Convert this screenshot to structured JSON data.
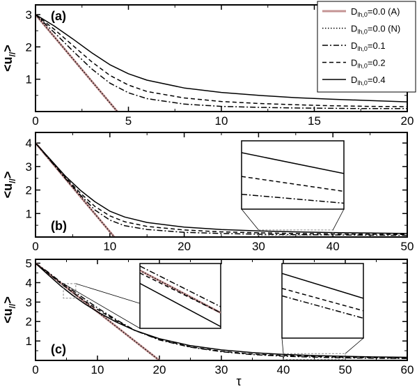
{
  "colors": {
    "analytic": "#c49494",
    "curves": "#000000",
    "inset_box": "#888888"
  },
  "legend": [
    {
      "base": "D",
      "sub": "lh,0",
      "suffix": "=0.0 (A)",
      "style": "analytic"
    },
    {
      "base": "D",
      "sub": "lh,0",
      "suffix": "=0.0 (N)",
      "style": "dotted"
    },
    {
      "base": "D",
      "sub": "lh,0",
      "suffix": "=0.1",
      "style": "dashdot"
    },
    {
      "base": "D",
      "sub": "lh,0",
      "suffix": "=0.2",
      "style": "dashed"
    },
    {
      "base": "D",
      "sub": "lh,0",
      "suffix": "=0.4",
      "style": "solid"
    }
  ],
  "xlabel": "τ",
  "chart_data": [
    {
      "type": "line",
      "panel_label": "(a)",
      "ylabel": {
        "base": "<u",
        "sub": "//",
        "suffix": ">"
      },
      "xlim": [
        0,
        20
      ],
      "ylim": [
        0,
        3.3
      ],
      "xticks": [
        "0",
        "5",
        "10",
        "15",
        "20"
      ],
      "yticks": [
        "1",
        "2",
        "3"
      ],
      "x": [
        0,
        1,
        2,
        3,
        4,
        5,
        6,
        8,
        10,
        12,
        14,
        16,
        18,
        20
      ],
      "series": [
        {
          "name": "Dlh,0=0.0 (A)",
          "style": "analytic",
          "points": [
            [
              0,
              3.0
            ],
            [
              4.4,
              0.0
            ]
          ]
        },
        {
          "name": "Dlh,0=0.0 (N)",
          "style": "dotted",
          "points": [
            [
              0,
              3.0
            ],
            [
              4.4,
              0.0
            ]
          ]
        },
        {
          "name": "Dlh,0=0.1",
          "style": "dashdot",
          "values": [
            3.0,
            2.45,
            1.88,
            1.33,
            0.88,
            0.58,
            0.4,
            0.23,
            0.16,
            0.13,
            0.11,
            0.1,
            0.09,
            0.09
          ]
        },
        {
          "name": "Dlh,0=0.2",
          "style": "dashed",
          "values": [
            3.0,
            2.55,
            2.05,
            1.55,
            1.12,
            0.82,
            0.62,
            0.42,
            0.31,
            0.25,
            0.21,
            0.18,
            0.16,
            0.15
          ]
        },
        {
          "name": "Dlh,0=0.4",
          "style": "solid",
          "values": [
            3.0,
            2.65,
            2.25,
            1.83,
            1.45,
            1.17,
            0.97,
            0.73,
            0.59,
            0.5,
            0.43,
            0.38,
            0.34,
            0.3
          ]
        }
      ]
    },
    {
      "type": "line",
      "panel_label": "(b)",
      "ylabel": {
        "base": "<u",
        "sub": "//",
        "suffix": ">"
      },
      "xlim": [
        0,
        50
      ],
      "ylim": [
        0,
        4.45
      ],
      "xticks": [
        "0",
        "10",
        "20",
        "30",
        "40",
        "50"
      ],
      "yticks": [
        "1",
        "2",
        "3",
        "4"
      ],
      "x": [
        0,
        2,
        4,
        6,
        8,
        10,
        12,
        15,
        20,
        25,
        30,
        35,
        40,
        45,
        50
      ],
      "series": [
        {
          "name": "Dlh,0=0.0 (A)",
          "style": "analytic",
          "points": [
            [
              0,
              4.0
            ],
            [
              10.6,
              0.0
            ]
          ]
        },
        {
          "name": "Dlh,0=0.0 (N)",
          "style": "dotted",
          "points": [
            [
              0,
              4.0
            ],
            [
              10.6,
              0.0
            ]
          ]
        },
        {
          "name": "Dlh,0=0.1",
          "style": "dashdot",
          "values": [
            4.0,
            3.25,
            2.5,
            1.8,
            1.15,
            0.72,
            0.48,
            0.32,
            0.2,
            0.15,
            0.12,
            0.1,
            0.09,
            0.08,
            0.07
          ]
        },
        {
          "name": "Dlh,0=0.2",
          "style": "dashed",
          "values": [
            4.0,
            3.28,
            2.55,
            1.88,
            1.3,
            0.9,
            0.65,
            0.45,
            0.3,
            0.22,
            0.18,
            0.15,
            0.13,
            0.12,
            0.11
          ]
        },
        {
          "name": "Dlh,0=0.4",
          "style": "solid",
          "values": [
            4.0,
            3.3,
            2.6,
            2.0,
            1.5,
            1.1,
            0.85,
            0.62,
            0.42,
            0.32,
            0.26,
            0.22,
            0.19,
            0.17,
            0.15
          ]
        }
      ],
      "insets": [
        {
          "zoom_x": [
            30,
            40
          ],
          "zoom_y": [
            0.07,
            0.3
          ],
          "series": [
            {
              "style": "solid",
              "values": [
                0.26,
                0.19
              ]
            },
            {
              "style": "dashed",
              "values": [
                0.18,
                0.13
              ]
            },
            {
              "style": "dashdot",
              "values": [
                0.12,
                0.09
              ]
            }
          ]
        }
      ]
    },
    {
      "type": "line",
      "panel_label": "(c)",
      "ylabel": {
        "base": "<u",
        "sub": "//",
        "suffix": ">"
      },
      "xlim": [
        0,
        60
      ],
      "ylim": [
        0,
        5.2
      ],
      "xticks": [
        "0",
        "10",
        "20",
        "30",
        "40",
        "50",
        "60"
      ],
      "yticks": [
        "1",
        "2",
        "3",
        "4",
        "5"
      ],
      "x": [
        0,
        2,
        4,
        6,
        8,
        10,
        13,
        16,
        20,
        25,
        30,
        35,
        40,
        45,
        50,
        55,
        60
      ],
      "series": [
        {
          "name": "Dlh,0=0.0 (A)",
          "style": "analytic",
          "points": [
            [
              0,
              5.0
            ],
            [
              20.0,
              0.0
            ]
          ]
        },
        {
          "name": "Dlh,0=0.0 (N)",
          "style": "dotted",
          "points": [
            [
              0,
              5.0
            ],
            [
              20.0,
              0.0
            ]
          ]
        },
        {
          "name": "Dlh,0=0.1",
          "style": "dashdot",
          "values": [
            5.0,
            4.55,
            4.05,
            3.6,
            3.15,
            2.7,
            2.1,
            1.55,
            1.05,
            0.68,
            0.45,
            0.3,
            0.22,
            0.17,
            0.13,
            0.11,
            0.1
          ]
        },
        {
          "name": "Dlh,0=0.2",
          "style": "dashed",
          "values": [
            5.0,
            4.5,
            3.98,
            3.5,
            3.05,
            2.62,
            2.05,
            1.55,
            1.08,
            0.7,
            0.47,
            0.33,
            0.25,
            0.2,
            0.16,
            0.14,
            0.12
          ]
        },
        {
          "name": "Dlh,0=0.4",
          "style": "solid",
          "values": [
            5.0,
            4.42,
            3.85,
            3.35,
            2.9,
            2.5,
            1.98,
            1.55,
            1.12,
            0.76,
            0.54,
            0.4,
            0.31,
            0.25,
            0.21,
            0.18,
            0.16
          ]
        }
      ],
      "insets": [
        {
          "zoom_x": [
            4.5,
            6.5
          ],
          "zoom_y": [
            3.2,
            3.95
          ],
          "series": [
            {
              "style": "analytic",
              "values": [
                3.87,
                3.38
              ]
            },
            {
              "style": "dotted",
              "values": [
                3.87,
                3.38
              ]
            },
            {
              "style": "dashdot",
              "values": [
                3.92,
                3.45
              ]
            },
            {
              "style": "dashed",
              "values": [
                3.84,
                3.38
              ]
            },
            {
              "style": "solid",
              "values": [
                3.72,
                3.22
              ]
            }
          ]
        },
        {
          "zoom_x": [
            40,
            50
          ],
          "zoom_y": [
            0.05,
            0.35
          ],
          "series": [
            {
              "style": "solid",
              "values": [
                0.31,
                0.21
              ]
            },
            {
              "style": "dashed",
              "values": [
                0.25,
                0.16
              ]
            },
            {
              "style": "dashdot",
              "values": [
                0.22,
                0.13
              ]
            }
          ]
        }
      ]
    }
  ]
}
